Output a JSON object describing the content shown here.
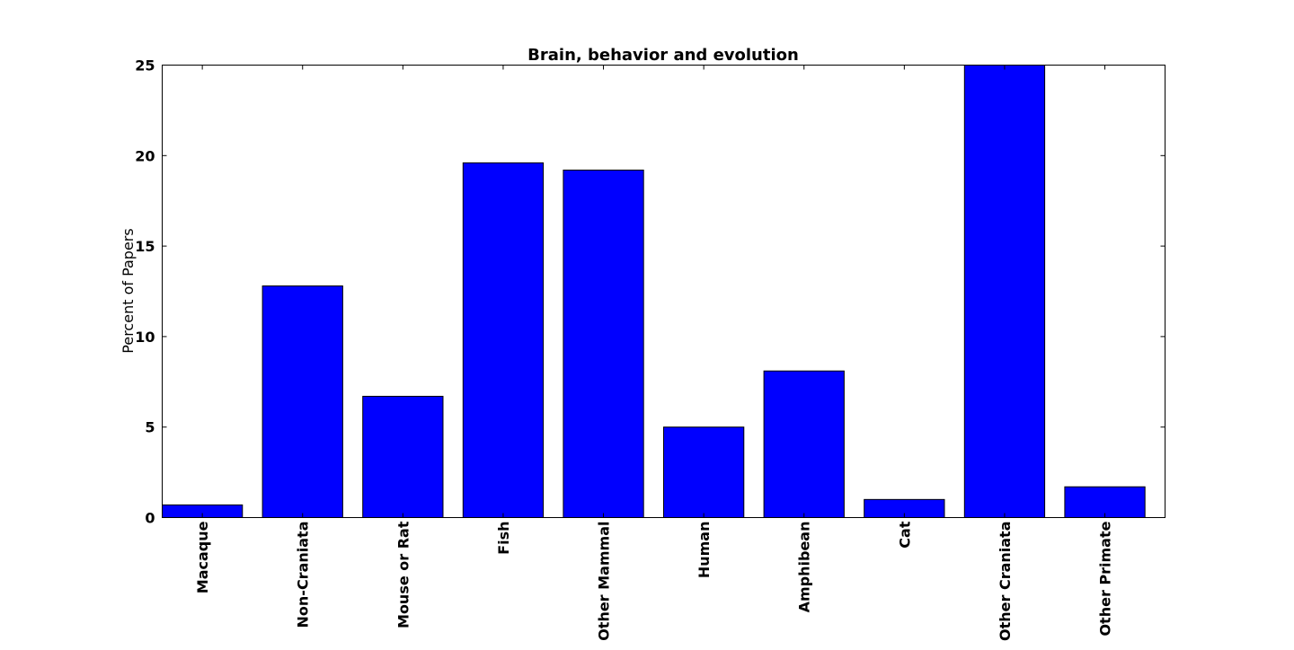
{
  "chart_data": {
    "type": "bar",
    "title": "Brain, behavior and evolution",
    "xlabel": "",
    "ylabel": "Percent of Papers",
    "categories": [
      "Macaque",
      "Non-Craniata",
      "Mouse or Rat",
      "Fish",
      "Other Mammal",
      "Human",
      "Amphibean",
      "Cat",
      "Other Craniata",
      "Other Primate"
    ],
    "values": [
      0.7,
      12.8,
      6.7,
      19.6,
      19.2,
      5.0,
      8.1,
      1.0,
      25.0,
      1.7
    ],
    "ylim": [
      0,
      25
    ],
    "yticks": [
      0,
      5,
      10,
      15,
      20,
      25
    ],
    "grid": false,
    "legend": "none",
    "bar_color": "#0000ff",
    "edge_color": "#000000"
  }
}
